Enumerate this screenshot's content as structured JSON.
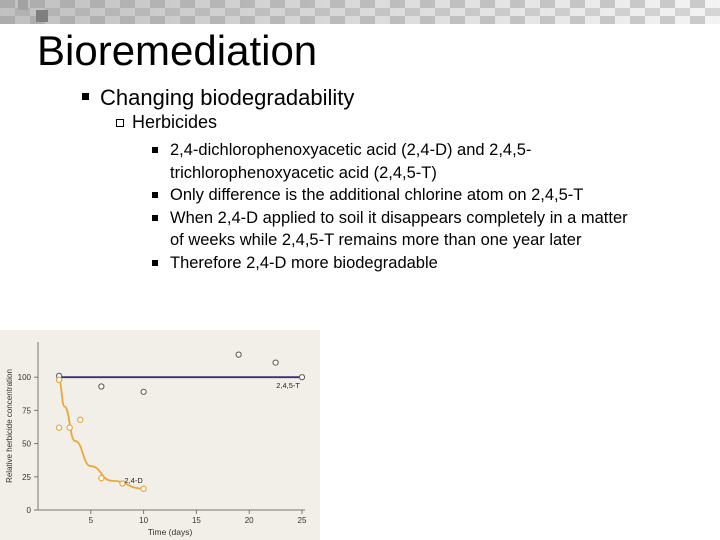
{
  "slide": {
    "title": "Bioremediation",
    "bullet": "Changing biodegradability",
    "sub_bullet": "Herbicides",
    "points": [
      "2,4-dichlorophenoxyacetic acid (2,4-D) and 2,4,5-trichlorophenoxyacetic acid (2,4,5-T)",
      "Only difference is the additional chlorine atom on 2,4,5-T",
      "When 2,4-D applied to soil it disappears completely in a matter of weeks while 2,4,5-T remains more than one year later",
      "Therefore 2,4-D more biodegradable"
    ]
  },
  "colors": {
    "banner": "#8d8d8d",
    "chart_bg": "#f1efe7",
    "line_25d": "#e8a83c",
    "line_245t": "#3c2f7a",
    "marker_fill": "#ffffff"
  },
  "chart_data": {
    "type": "line",
    "xlabel": "Time (days)",
    "ylabel": "Relative herbicide concentration",
    "xlim": [
      0,
      25
    ],
    "ylim": [
      0,
      125
    ],
    "x_ticks": [
      5,
      10,
      15,
      20,
      25
    ],
    "y_ticks": [
      0,
      25,
      50,
      75,
      100
    ],
    "grid": false,
    "series": [
      {
        "name": "2,4,5-T",
        "line_y": 100,
        "points": [
          [
            2,
            101
          ],
          [
            2,
            98
          ],
          [
            6,
            93
          ],
          [
            10,
            89
          ],
          [
            19,
            117
          ],
          [
            22.5,
            111
          ],
          [
            25,
            100
          ]
        ]
      },
      {
        "name": "2,4-D",
        "curve": [
          [
            2,
            97
          ],
          [
            2.5,
            78
          ],
          [
            3.5,
            52
          ],
          [
            5,
            33
          ],
          [
            7,
            22
          ],
          [
            10,
            16
          ]
        ],
        "points": [
          [
            2,
            98
          ],
          [
            2,
            62
          ],
          [
            3,
            62
          ],
          [
            4,
            68
          ],
          [
            6,
            24
          ],
          [
            8,
            20
          ],
          [
            10,
            16
          ]
        ]
      }
    ]
  }
}
